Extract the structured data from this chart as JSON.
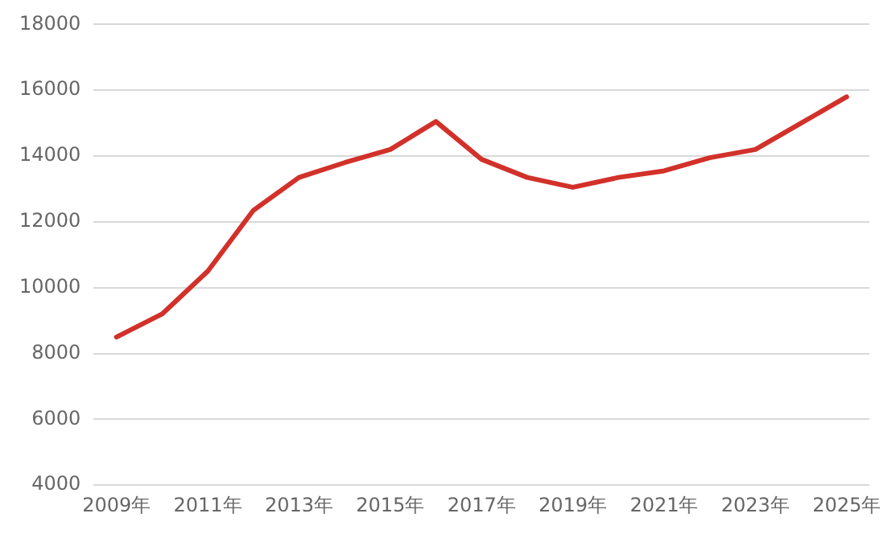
{
  "chart_data": {
    "type": "line",
    "categories": [
      "2009年",
      null,
      "2011年",
      null,
      "2013年",
      null,
      "2015年",
      null,
      "2017年",
      null,
      "2019年",
      null,
      "2021年",
      null,
      "2023年",
      null,
      "2025年"
    ],
    "series": [
      {
        "color": "#d2312a",
        "values": [
          8500,
          9200,
          10500,
          12350,
          13350,
          13800,
          14200,
          15050,
          13900,
          13350,
          13050,
          13350,
          13550,
          13950,
          14200,
          15000,
          15800
        ]
      }
    ],
    "ylim": [
      4000,
      18000
    ],
    "yticks": [
      4000,
      6000,
      8000,
      10000,
      12000,
      14000,
      16000,
      18000
    ],
    "grid": "y",
    "legend": false,
    "marker": "none",
    "line_style": "solid"
  }
}
